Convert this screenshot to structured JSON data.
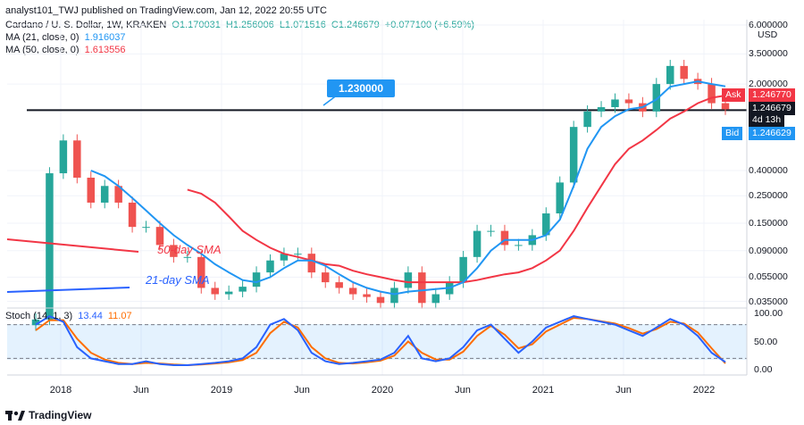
{
  "header": {
    "publisher": "analyst101_TWJ published on TradingView.com, Jan 12, 2022 20:55 UTC"
  },
  "symbol_legend": {
    "name": "Cardano / U. S. Dollar, 1W, KRAKEN",
    "o": "O1.170031",
    "h": "H1.256006",
    "l": "L1.071516",
    "c": "C1.246679",
    "chg": "+0.077100 (+6.59%)",
    "up_color": "#26a69a"
  },
  "ma21": {
    "label": "MA (21, close, 0)",
    "value": "1.916037",
    "color": "#2196f3"
  },
  "ma50": {
    "label": "MA (50, close, 0)",
    "value": "1.613556",
    "color": "#f23645"
  },
  "stoch": {
    "label": "Stoch (14, 1, 3)",
    "k": "13.44",
    "d": "11.07",
    "k_color": "#2962ff",
    "d_color": "#ff6d00"
  },
  "currency": "USD",
  "price_ticks": [
    "6.000000",
    "3.500000",
    "2.000000",
    "0.400000",
    "0.250000",
    "0.150000",
    "0.090000",
    "0.055000",
    "0.035000"
  ],
  "stoch_ticks": [
    "100.00",
    "50.00",
    "0.00"
  ],
  "x_labels": [
    "2018",
    "Jun",
    "2019",
    "Jun",
    "2020",
    "Jun",
    "2021",
    "Jun",
    "2022"
  ],
  "tags": {
    "ask_label": "Ask",
    "ask_value": "1.246770",
    "last_value": "1.246679",
    "countdown": "4d 13h",
    "bid_label": "Bid",
    "bid_value": "1.246629"
  },
  "annotations": {
    "level": "1.230000",
    "sma50_text": "50-day SMA",
    "sma21_text": "21-day SMA"
  },
  "footer": {
    "brand": "TradingView"
  },
  "chart_data": {
    "type": "candlestick",
    "title": "Cardano / U. S. Dollar, 1W, KRAKEN",
    "y_scale": "log",
    "x": [
      "2017-11",
      "2017-12",
      "2018-01",
      "2018-02",
      "2018-03",
      "2018-04",
      "2018-05",
      "2018-06",
      "2018-07",
      "2018-08",
      "2018-09",
      "2018-10",
      "2018-11",
      "2018-12",
      "2019-01",
      "2019-02",
      "2019-03",
      "2019-04",
      "2019-05",
      "2019-06",
      "2019-07",
      "2019-08",
      "2019-09",
      "2019-10",
      "2019-11",
      "2019-12",
      "2020-01",
      "2020-02",
      "2020-03",
      "2020-04",
      "2020-05",
      "2020-06",
      "2020-07",
      "2020-08",
      "2020-09",
      "2020-10",
      "2020-11",
      "2020-12",
      "2021-01",
      "2021-02",
      "2021-03",
      "2021-04",
      "2021-05",
      "2021-06",
      "2021-07",
      "2021-08",
      "2021-09",
      "2021-10",
      "2021-11",
      "2021-12",
      "2022-01"
    ],
    "close": [
      0.025,
      0.38,
      0.7,
      0.35,
      0.22,
      0.3,
      0.22,
      0.14,
      0.14,
      0.1,
      0.08,
      0.08,
      0.045,
      0.04,
      0.042,
      0.046,
      0.06,
      0.075,
      0.085,
      0.085,
      0.06,
      0.05,
      0.045,
      0.04,
      0.038,
      0.034,
      0.045,
      0.06,
      0.034,
      0.04,
      0.05,
      0.08,
      0.13,
      0.13,
      0.1,
      0.1,
      0.12,
      0.18,
      0.32,
      0.9,
      1.2,
      1.3,
      1.5,
      1.4,
      1.2,
      2.0,
      2.8,
      2.2,
      2.0,
      1.4,
      1.25
    ],
    "ma21_series": [
      null,
      null,
      null,
      null,
      0.4,
      0.36,
      0.3,
      0.24,
      0.19,
      0.15,
      0.12,
      0.1,
      0.085,
      0.07,
      0.06,
      0.052,
      0.05,
      0.055,
      0.065,
      0.075,
      0.075,
      0.068,
      0.058,
      0.05,
      0.045,
      0.042,
      0.04,
      0.042,
      0.043,
      0.044,
      0.045,
      0.05,
      0.065,
      0.09,
      0.11,
      0.11,
      0.11,
      0.12,
      0.16,
      0.3,
      0.6,
      0.9,
      1.1,
      1.25,
      1.3,
      1.5,
      1.9,
      2.0,
      2.1,
      2.0,
      1.916
    ],
    "ma50_series": [
      null,
      null,
      null,
      null,
      null,
      null,
      null,
      null,
      null,
      null,
      null,
      0.28,
      0.26,
      0.22,
      0.17,
      0.13,
      0.11,
      0.095,
      0.085,
      0.08,
      0.075,
      0.07,
      0.068,
      0.062,
      0.058,
      0.055,
      0.052,
      0.05,
      0.05,
      0.05,
      0.05,
      0.05,
      0.052,
      0.055,
      0.058,
      0.06,
      0.065,
      0.075,
      0.09,
      0.13,
      0.2,
      0.3,
      0.45,
      0.6,
      0.7,
      0.85,
      1.05,
      1.2,
      1.4,
      1.55,
      1.614
    ],
    "stoch_k": [
      80,
      95,
      85,
      40,
      20,
      15,
      10,
      10,
      15,
      10,
      8,
      8,
      10,
      12,
      15,
      20,
      40,
      80,
      90,
      70,
      30,
      15,
      10,
      12,
      15,
      18,
      30,
      60,
      20,
      15,
      20,
      40,
      70,
      80,
      55,
      30,
      50,
      75,
      85,
      95,
      90,
      85,
      80,
      70,
      60,
      75,
      90,
      80,
      60,
      30,
      13.44
    ],
    "stoch_d": [
      70,
      88,
      88,
      55,
      30,
      18,
      12,
      10,
      12,
      11,
      9,
      8,
      9,
      11,
      13,
      17,
      30,
      65,
      85,
      75,
      40,
      20,
      12,
      11,
      13,
      16,
      25,
      50,
      30,
      18,
      18,
      32,
      60,
      78,
      62,
      38,
      45,
      68,
      80,
      92,
      90,
      86,
      82,
      74,
      64,
      72,
      85,
      82,
      66,
      38,
      11.07
    ],
    "levels": [
      1.23
    ],
    "stoch_levels": [
      80,
      20
    ],
    "xlabel": "",
    "ylabel": "USD"
  }
}
